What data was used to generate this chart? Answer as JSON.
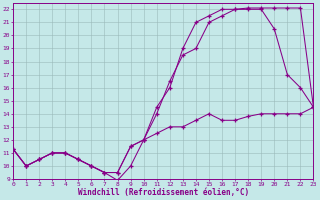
{
  "xlabel": "Windchill (Refroidissement éolien,°C)",
  "xlim": [
    0,
    23
  ],
  "ylim": [
    9,
    22.5
  ],
  "xticks": [
    0,
    1,
    2,
    3,
    4,
    5,
    6,
    7,
    8,
    9,
    10,
    11,
    12,
    13,
    14,
    15,
    16,
    17,
    18,
    19,
    20,
    21,
    22,
    23
  ],
  "yticks": [
    9,
    10,
    11,
    12,
    13,
    14,
    15,
    16,
    17,
    18,
    19,
    20,
    21,
    22
  ],
  "bg_color": "#c5e8e8",
  "line_color": "#880088",
  "line1_x": [
    0,
    1,
    2,
    3,
    4,
    5,
    6,
    7,
    8,
    9,
    10,
    11,
    12,
    13,
    14,
    15,
    16,
    17,
    18,
    19,
    20,
    21,
    22,
    23
  ],
  "line1_y": [
    11.3,
    10.0,
    10.5,
    11.0,
    11.0,
    10.5,
    10.0,
    9.5,
    8.9,
    10.0,
    12.0,
    14.0,
    16.5,
    18.5,
    19.0,
    21.0,
    21.5,
    22.0,
    22.0,
    22.0,
    20.5,
    17.0,
    16.0,
    14.5
  ],
  "line2_x": [
    0,
    1,
    2,
    3,
    4,
    5,
    6,
    7,
    8,
    9,
    10,
    11,
    12,
    13,
    14,
    15,
    16,
    17,
    18,
    19,
    20,
    21,
    22,
    23
  ],
  "line2_y": [
    11.3,
    10.0,
    10.5,
    11.0,
    11.0,
    10.5,
    10.0,
    9.5,
    9.5,
    11.5,
    12.0,
    14.5,
    16.0,
    19.0,
    21.0,
    21.5,
    22.0,
    22.0,
    22.1,
    22.1,
    22.1,
    22.1,
    22.1,
    14.5
  ],
  "line3_x": [
    0,
    1,
    2,
    3,
    4,
    5,
    6,
    7,
    8,
    9,
    10,
    11,
    12,
    13,
    14,
    15,
    16,
    17,
    18,
    19,
    20,
    21,
    22,
    23
  ],
  "line3_y": [
    11.3,
    10.0,
    10.5,
    11.0,
    11.0,
    10.5,
    10.0,
    9.5,
    9.5,
    11.5,
    12.0,
    12.5,
    13.0,
    13.0,
    13.5,
    14.0,
    13.5,
    13.5,
    13.8,
    14.0,
    14.0,
    14.0,
    14.0,
    14.5
  ],
  "grid_color": "#9ababa",
  "tick_fontsize": 4.5,
  "label_fontsize": 5.5
}
